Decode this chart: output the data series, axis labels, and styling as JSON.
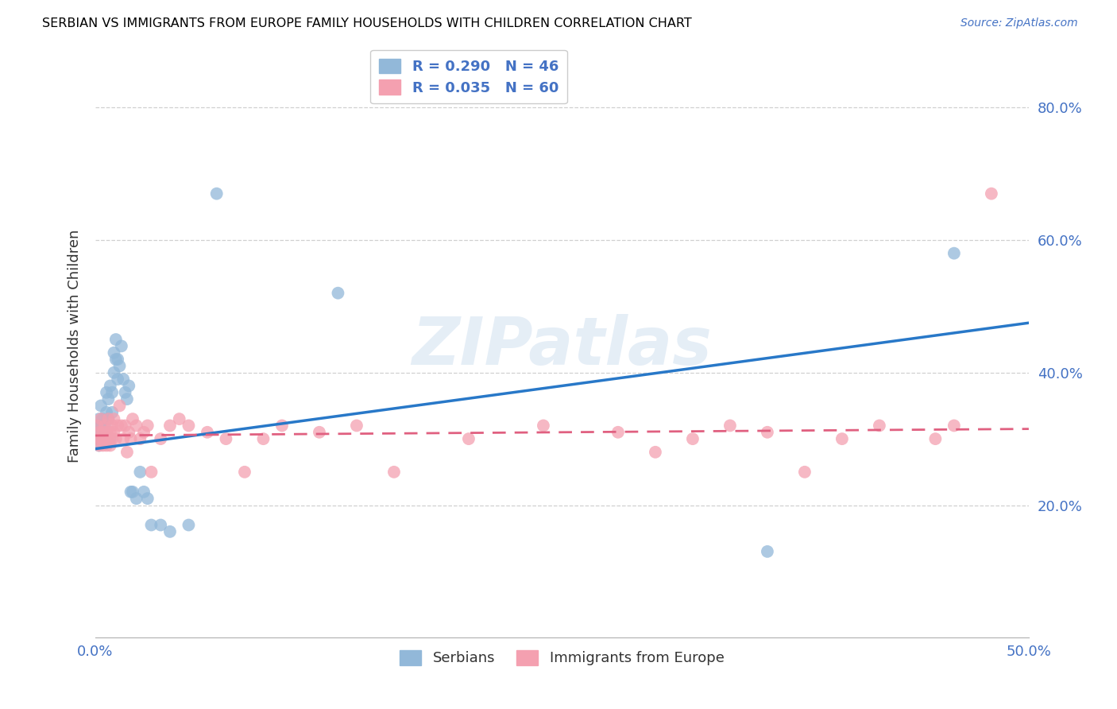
{
  "title": "SERBIAN VS IMMIGRANTS FROM EUROPE FAMILY HOUSEHOLDS WITH CHILDREN CORRELATION CHART",
  "source": "Source: ZipAtlas.com",
  "ylabel": "Family Households with Children",
  "ytick_labels": [
    "20.0%",
    "40.0%",
    "60.0%",
    "80.0%"
  ],
  "ytick_values": [
    0.2,
    0.4,
    0.6,
    0.8
  ],
  "xlim": [
    0.0,
    0.5
  ],
  "ylim": [
    0.0,
    0.88
  ],
  "watermark": "ZIPatlas",
  "series1_color": "#92b8d9",
  "series2_color": "#f4a0b0",
  "trendline1_color": "#2878c8",
  "trendline2_color": "#e06080",
  "series1_name": "Serbians",
  "series2_name": "Immigrants from Europe",
  "series1_R": 0.29,
  "series1_N": 46,
  "series2_R": 0.035,
  "series2_N": 60,
  "series1_x": [
    0.001,
    0.001,
    0.002,
    0.002,
    0.002,
    0.003,
    0.003,
    0.003,
    0.004,
    0.004,
    0.005,
    0.005,
    0.006,
    0.006,
    0.007,
    0.007,
    0.008,
    0.008,
    0.009,
    0.009,
    0.01,
    0.01,
    0.011,
    0.011,
    0.012,
    0.012,
    0.013,
    0.014,
    0.015,
    0.016,
    0.017,
    0.018,
    0.019,
    0.02,
    0.022,
    0.024,
    0.026,
    0.028,
    0.03,
    0.035,
    0.04,
    0.05,
    0.065,
    0.13,
    0.36,
    0.46
  ],
  "series1_y": [
    0.3,
    0.32,
    0.29,
    0.31,
    0.33,
    0.3,
    0.32,
    0.35,
    0.31,
    0.33,
    0.3,
    0.32,
    0.34,
    0.37,
    0.33,
    0.36,
    0.3,
    0.38,
    0.34,
    0.37,
    0.4,
    0.43,
    0.42,
    0.45,
    0.39,
    0.42,
    0.41,
    0.44,
    0.39,
    0.37,
    0.36,
    0.38,
    0.22,
    0.22,
    0.21,
    0.25,
    0.22,
    0.21,
    0.17,
    0.17,
    0.16,
    0.17,
    0.67,
    0.52,
    0.13,
    0.58
  ],
  "series2_x": [
    0.001,
    0.001,
    0.002,
    0.002,
    0.003,
    0.003,
    0.004,
    0.004,
    0.005,
    0.005,
    0.006,
    0.006,
    0.007,
    0.007,
    0.008,
    0.008,
    0.009,
    0.009,
    0.01,
    0.01,
    0.011,
    0.012,
    0.013,
    0.014,
    0.015,
    0.016,
    0.017,
    0.018,
    0.019,
    0.02,
    0.022,
    0.024,
    0.026,
    0.028,
    0.03,
    0.035,
    0.04,
    0.045,
    0.05,
    0.06,
    0.07,
    0.08,
    0.09,
    0.1,
    0.12,
    0.14,
    0.16,
    0.2,
    0.24,
    0.28,
    0.3,
    0.32,
    0.34,
    0.36,
    0.38,
    0.4,
    0.42,
    0.45,
    0.46,
    0.48
  ],
  "series2_y": [
    0.3,
    0.32,
    0.31,
    0.29,
    0.33,
    0.3,
    0.31,
    0.29,
    0.32,
    0.3,
    0.29,
    0.31,
    0.33,
    0.3,
    0.31,
    0.29,
    0.32,
    0.3,
    0.31,
    0.33,
    0.3,
    0.32,
    0.35,
    0.32,
    0.3,
    0.32,
    0.28,
    0.31,
    0.3,
    0.33,
    0.32,
    0.3,
    0.31,
    0.32,
    0.25,
    0.3,
    0.32,
    0.33,
    0.32,
    0.31,
    0.3,
    0.25,
    0.3,
    0.32,
    0.31,
    0.32,
    0.25,
    0.3,
    0.32,
    0.31,
    0.28,
    0.3,
    0.32,
    0.31,
    0.25,
    0.3,
    0.32,
    0.3,
    0.32,
    0.67
  ],
  "trendline1_x0": 0.0,
  "trendline1_y0": 0.285,
  "trendline1_x1": 0.5,
  "trendline1_y1": 0.475,
  "trendline2_x0": 0.0,
  "trendline2_y0": 0.305,
  "trendline2_x1": 0.5,
  "trendline2_y1": 0.315
}
